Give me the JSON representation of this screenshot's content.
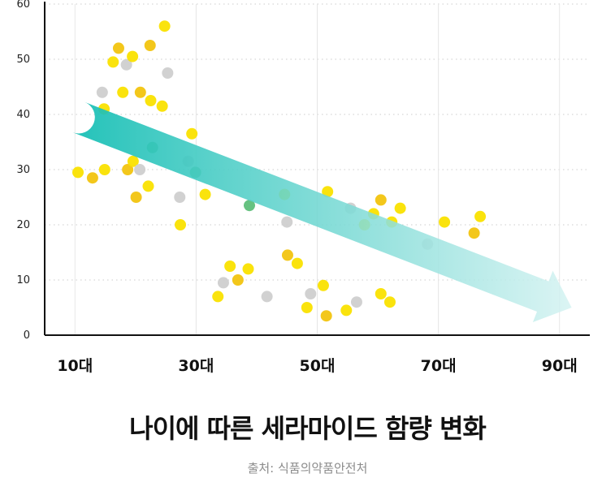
{
  "title": "나이에 따른 세라마이드 함량 변화",
  "source": "출처: 식품의약품안전처",
  "colors": {
    "bright": "#fae100",
    "gold": "#f2c40f",
    "gray": "#cfcfcf",
    "green": "#5fbf7a",
    "arrow_start": "#10bdb3",
    "arrow_end": "#d3f2f1",
    "axis": "#111111",
    "grid": "#cccccc"
  },
  "chart_data": {
    "type": "scatter",
    "title": "나이에 따른 세라마이드 함량 변화",
    "xlabel": "",
    "ylabel": "",
    "xlim": [
      5,
      95
    ],
    "ylim": [
      0,
      60
    ],
    "x_ticks": [
      10,
      30,
      50,
      70,
      90
    ],
    "x_tick_labels": [
      "10대",
      "30대",
      "50대",
      "70대",
      "90대"
    ],
    "y_ticks": [
      0,
      10,
      20,
      30,
      40,
      50,
      60
    ],
    "y_tick_labels": [
      "0",
      "10",
      "20",
      "30",
      "40",
      "50",
      "60"
    ],
    "grid": "dotted horizontal, solid vertical",
    "trend": {
      "x0": 10.6,
      "y0": 39.5,
      "x1": 92,
      "y1": 5,
      "direction": "decreasing"
    },
    "points": [
      {
        "x": 10.5,
        "y": 29.5,
        "c": "bright"
      },
      {
        "x": 12.9,
        "y": 28.5,
        "c": "gold"
      },
      {
        "x": 14.5,
        "y": 44,
        "c": "gray"
      },
      {
        "x": 14.8,
        "y": 41,
        "c": "bright"
      },
      {
        "x": 14.9,
        "y": 30,
        "c": "bright"
      },
      {
        "x": 16.3,
        "y": 49.5,
        "c": "bright"
      },
      {
        "x": 17.2,
        "y": 52,
        "c": "gold"
      },
      {
        "x": 17.9,
        "y": 44,
        "c": "bright"
      },
      {
        "x": 18.5,
        "y": 49,
        "c": "gray"
      },
      {
        "x": 18.7,
        "y": 30,
        "c": "gold"
      },
      {
        "x": 19.5,
        "y": 50.5,
        "c": "bright"
      },
      {
        "x": 19.6,
        "y": 31.5,
        "c": "bright"
      },
      {
        "x": 20.1,
        "y": 25,
        "c": "gold"
      },
      {
        "x": 20.7,
        "y": 30,
        "c": "gray"
      },
      {
        "x": 20.8,
        "y": 44,
        "c": "gold"
      },
      {
        "x": 22.1,
        "y": 27,
        "c": "bright"
      },
      {
        "x": 22.4,
        "y": 52.5,
        "c": "gold"
      },
      {
        "x": 22.5,
        "y": 42.5,
        "c": "bright"
      },
      {
        "x": 22.8,
        "y": 34,
        "c": "green"
      },
      {
        "x": 24.4,
        "y": 41.5,
        "c": "bright"
      },
      {
        "x": 24.8,
        "y": 56,
        "c": "bright"
      },
      {
        "x": 25.3,
        "y": 47.5,
        "c": "gray"
      },
      {
        "x": 27.3,
        "y": 25,
        "c": "gray"
      },
      {
        "x": 27.4,
        "y": 20,
        "c": "bright"
      },
      {
        "x": 28.7,
        "y": 31.5,
        "c": "gray"
      },
      {
        "x": 29.3,
        "y": 36.5,
        "c": "bright"
      },
      {
        "x": 29.9,
        "y": 29.5,
        "c": "green"
      },
      {
        "x": 31.5,
        "y": 25.5,
        "c": "bright"
      },
      {
        "x": 33.6,
        "y": 7,
        "c": "bright"
      },
      {
        "x": 34.5,
        "y": 9.5,
        "c": "gray"
      },
      {
        "x": 35.6,
        "y": 12.5,
        "c": "bright"
      },
      {
        "x": 36.9,
        "y": 10,
        "c": "gold"
      },
      {
        "x": 38.6,
        "y": 12,
        "c": "bright"
      },
      {
        "x": 38.8,
        "y": 23.5,
        "c": "green"
      },
      {
        "x": 41.7,
        "y": 7,
        "c": "gray"
      },
      {
        "x": 44.6,
        "y": 25.5,
        "c": "bright"
      },
      {
        "x": 45,
        "y": 20.5,
        "c": "gray"
      },
      {
        "x": 45.1,
        "y": 14.5,
        "c": "gold"
      },
      {
        "x": 46.7,
        "y": 13,
        "c": "bright"
      },
      {
        "x": 48.3,
        "y": 5,
        "c": "bright"
      },
      {
        "x": 48.9,
        "y": 7.5,
        "c": "gray"
      },
      {
        "x": 51,
        "y": 9,
        "c": "bright"
      },
      {
        "x": 51.5,
        "y": 3.5,
        "c": "gold"
      },
      {
        "x": 51.7,
        "y": 26,
        "c": "bright"
      },
      {
        "x": 54.8,
        "y": 4.5,
        "c": "bright"
      },
      {
        "x": 55.5,
        "y": 23,
        "c": "gray"
      },
      {
        "x": 56.5,
        "y": 6,
        "c": "gray"
      },
      {
        "x": 57.8,
        "y": 20,
        "c": "bright"
      },
      {
        "x": 59.3,
        "y": 22,
        "c": "bright"
      },
      {
        "x": 60.5,
        "y": 24.5,
        "c": "gold"
      },
      {
        "x": 60.5,
        "y": 7.5,
        "c": "bright"
      },
      {
        "x": 62,
        "y": 6,
        "c": "bright"
      },
      {
        "x": 62.3,
        "y": 20.5,
        "c": "bright"
      },
      {
        "x": 63.7,
        "y": 23,
        "c": "bright"
      },
      {
        "x": 68.2,
        "y": 16.5,
        "c": "gray"
      },
      {
        "x": 71,
        "y": 20.5,
        "c": "bright"
      },
      {
        "x": 75.9,
        "y": 18.5,
        "c": "gold"
      },
      {
        "x": 76.9,
        "y": 21.5,
        "c": "bright"
      }
    ]
  }
}
